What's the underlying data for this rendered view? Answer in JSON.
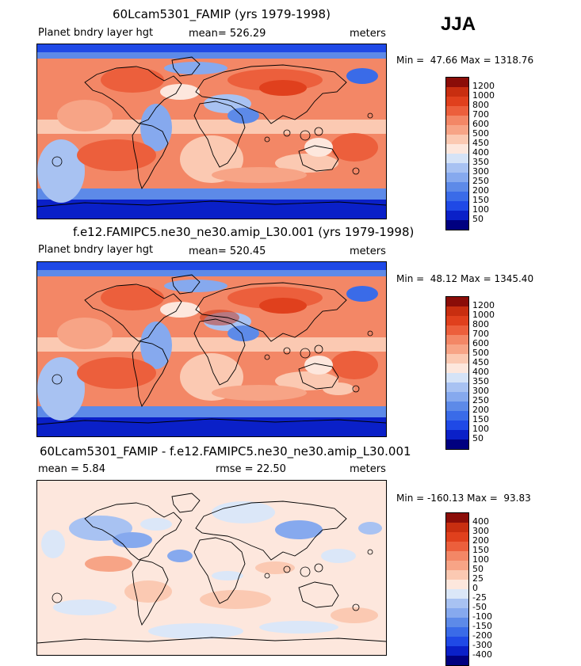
{
  "season": "JJA",
  "colors": {
    "abs": [
      "#000080",
      "#0a20c8",
      "#1f49e6",
      "#3a6be8",
      "#5d8ae8",
      "#86a9ee",
      "#a8c2f2",
      "#d5e3f7",
      "#fde7dd",
      "#fbc9b2",
      "#f7a486",
      "#f38766",
      "#ec5f3c",
      "#e0401d",
      "#c82e10",
      "#8b0d08"
    ],
    "diff": [
      "#000080",
      "#0a20c8",
      "#1f49e6",
      "#3a6be8",
      "#5d8ae8",
      "#86a9ee",
      "#a8c2f2",
      "#dbe7f8",
      "#fde7dd",
      "#fbc9b2",
      "#f7a486",
      "#f38766",
      "#ec5f3c",
      "#e0401d",
      "#c82e10",
      "#8b0d08"
    ]
  },
  "panels": [
    {
      "title": "60Lcam5301_FAMIP (yrs 1979-1998)",
      "left_label": "Planet bndry layer hgt",
      "mean_text": "mean= 526.29",
      "units": "meters",
      "minmax": "Min =  47.66 Max = 1318.76",
      "levels": [
        "1200",
        "1000",
        "800",
        "700",
        "600",
        "500",
        "450",
        "400",
        "350",
        "300",
        "250",
        "200",
        "150",
        "100",
        "50"
      ],
      "palette": "abs"
    },
    {
      "title": "f.e12.FAMIPC5.ne30_ne30.amip_L30.001 (yrs 1979-1998)",
      "left_label": "Planet bndry layer hgt",
      "mean_text": "mean= 520.45",
      "units": "meters",
      "minmax": "Min =  48.12 Max = 1345.40",
      "levels": [
        "1200",
        "1000",
        "800",
        "700",
        "600",
        "500",
        "450",
        "400",
        "350",
        "300",
        "250",
        "200",
        "150",
        "100",
        "50"
      ],
      "palette": "abs"
    },
    {
      "title": "60Lcam5301_FAMIP - f.e12.FAMIPC5.ne30_ne30.amip_L30.001",
      "left_label": "mean =    5.84",
      "mean_text": "rmse =   22.50",
      "units": "meters",
      "minmax": "Min = -160.13 Max =  93.83",
      "levels": [
        "400",
        "300",
        "200",
        "150",
        "100",
        "50",
        "25",
        "0",
        "-25",
        "-50",
        "-100",
        "-150",
        "-200",
        "-300",
        "-400"
      ],
      "palette": "diff"
    }
  ]
}
